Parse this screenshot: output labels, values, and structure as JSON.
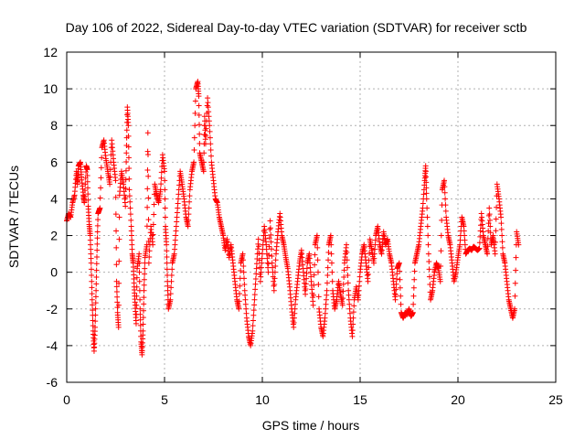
{
  "chart_data": {
    "type": "scatter",
    "title": "Day 106 of 2022, Sidereal Day-to-day VTEC variation (SDTVAR) for receiver sctb",
    "xlabel": "GPS time / hours",
    "ylabel": "SDTVAR / TECUs",
    "xlim": [
      0,
      25
    ],
    "ylim": [
      -6,
      12
    ],
    "xticks": [
      0,
      5,
      10,
      15,
      20,
      25
    ],
    "yticks": [
      -6,
      -4,
      -2,
      0,
      2,
      4,
      6,
      8,
      10,
      12
    ],
    "grid": true,
    "marker": "+",
    "color": "#ff0000",
    "series": [
      {
        "name": "SDTVAR",
        "points": [
          [
            0.0,
            2.8
          ],
          [
            0.1,
            3.2
          ],
          [
            0.2,
            3.0
          ],
          [
            0.3,
            3.8
          ],
          [
            0.4,
            4.2
          ],
          [
            0.5,
            5.5
          ],
          [
            0.55,
            4.8
          ],
          [
            0.6,
            5.8
          ],
          [
            0.7,
            6.0
          ],
          [
            0.75,
            5.2
          ],
          [
            0.85,
            4.2
          ],
          [
            0.9,
            3.8
          ],
          [
            1.0,
            5.8
          ],
          [
            1.05,
            5.6
          ],
          [
            1.1,
            3.6
          ],
          [
            1.15,
            2.6
          ],
          [
            1.2,
            2.0
          ],
          [
            1.25,
            0.5
          ],
          [
            1.3,
            -1.5
          ],
          [
            1.35,
            -3.2
          ],
          [
            1.4,
            -4.3
          ],
          [
            1.45,
            -3.0
          ],
          [
            1.5,
            -1.0
          ],
          [
            1.55,
            1.2
          ],
          [
            1.6,
            3.2
          ],
          [
            1.7,
            3.5
          ],
          [
            1.8,
            6.8
          ],
          [
            1.9,
            7.2
          ],
          [
            2.0,
            6.2
          ],
          [
            2.1,
            5.5
          ],
          [
            2.2,
            4.8
          ],
          [
            2.3,
            7.2
          ],
          [
            2.4,
            6.0
          ],
          [
            2.5,
            5.0
          ],
          [
            2.55,
            -0.5
          ],
          [
            2.6,
            -2.2
          ],
          [
            2.65,
            -3.0
          ],
          [
            2.7,
            4.2
          ],
          [
            2.8,
            5.5
          ],
          [
            2.9,
            4.8
          ],
          [
            3.0,
            3.6
          ],
          [
            3.05,
            6.5
          ],
          [
            3.1,
            9.0
          ],
          [
            3.15,
            8.0
          ],
          [
            3.2,
            4.5
          ],
          [
            3.3,
            2.5
          ],
          [
            3.35,
            1.0
          ],
          [
            3.4,
            0.5
          ],
          [
            3.45,
            -0.8
          ],
          [
            3.5,
            -1.8
          ],
          [
            3.55,
            -2.8
          ],
          [
            3.6,
            0.2
          ],
          [
            3.7,
            1.0
          ],
          [
            3.75,
            -2.0
          ],
          [
            3.8,
            -3.8
          ],
          [
            3.85,
            -4.5
          ],
          [
            3.9,
            -3.2
          ],
          [
            3.95,
            -1.0
          ],
          [
            4.0,
            0.8
          ],
          [
            4.1,
            1.5
          ],
          [
            4.15,
            7.6
          ],
          [
            4.2,
            0.5
          ],
          [
            4.3,
            2.5
          ],
          [
            4.4,
            1.5
          ],
          [
            4.5,
            4.8
          ],
          [
            4.6,
            4.2
          ],
          [
            4.7,
            3.8
          ],
          [
            4.8,
            4.5
          ],
          [
            4.9,
            6.4
          ],
          [
            5.0,
            5.5
          ],
          [
            5.05,
            2.5
          ],
          [
            5.1,
            1.5
          ],
          [
            5.15,
            -0.5
          ],
          [
            5.2,
            -2.0
          ],
          [
            5.3,
            -1.5
          ],
          [
            5.4,
            0.5
          ],
          [
            5.5,
            1.0
          ],
          [
            5.6,
            2.5
          ],
          [
            5.7,
            4.0
          ],
          [
            5.8,
            5.5
          ],
          [
            5.9,
            4.8
          ],
          [
            6.0,
            4.0
          ],
          [
            6.1,
            3.0
          ],
          [
            6.2,
            2.5
          ],
          [
            6.3,
            4.5
          ],
          [
            6.4,
            5.5
          ],
          [
            6.5,
            6.0
          ],
          [
            6.6,
            10.0
          ],
          [
            6.7,
            10.4
          ],
          [
            6.75,
            9.6
          ],
          [
            6.8,
            6.5
          ],
          [
            6.9,
            6.0
          ],
          [
            7.0,
            5.5
          ],
          [
            7.05,
            8.5
          ],
          [
            7.1,
            7.0
          ],
          [
            7.2,
            9.5
          ],
          [
            7.3,
            8.0
          ],
          [
            7.4,
            6.0
          ],
          [
            7.5,
            5.0
          ],
          [
            7.6,
            4.0
          ],
          [
            7.7,
            3.8
          ],
          [
            7.8,
            3.0
          ],
          [
            7.9,
            2.5
          ],
          [
            8.0,
            2.0
          ],
          [
            8.1,
            1.2
          ],
          [
            8.2,
            1.8
          ],
          [
            8.3,
            0.8
          ],
          [
            8.4,
            1.5
          ],
          [
            8.5,
            0.5
          ],
          [
            8.6,
            -0.5
          ],
          [
            8.7,
            -1.5
          ],
          [
            8.8,
            -2.0
          ],
          [
            8.9,
            0.5
          ],
          [
            9.0,
            1.0
          ],
          [
            9.1,
            -1.0
          ],
          [
            9.2,
            -2.5
          ],
          [
            9.3,
            -3.5
          ],
          [
            9.4,
            -4.0
          ],
          [
            9.5,
            -3.2
          ],
          [
            9.6,
            -1.5
          ],
          [
            9.7,
            0.2
          ],
          [
            9.8,
            1.8
          ],
          [
            9.9,
            -0.5
          ],
          [
            10.0,
            1.0
          ],
          [
            10.1,
            2.5
          ],
          [
            10.2,
            1.5
          ],
          [
            10.3,
            0.0
          ],
          [
            10.4,
            2.8
          ],
          [
            10.5,
            0.5
          ],
          [
            10.6,
            -1.0
          ],
          [
            10.7,
            1.0
          ],
          [
            10.8,
            2.2
          ],
          [
            10.9,
            3.2
          ],
          [
            11.0,
            2.0
          ],
          [
            11.1,
            1.5
          ],
          [
            11.2,
            0.8
          ],
          [
            11.3,
            0.2
          ],
          [
            11.4,
            -0.8
          ],
          [
            11.5,
            -2.0
          ],
          [
            11.6,
            -3.0
          ],
          [
            11.7,
            -1.5
          ],
          [
            11.8,
            -0.5
          ],
          [
            11.9,
            0.5
          ],
          [
            12.0,
            1.2
          ],
          [
            12.1,
            0.0
          ],
          [
            12.2,
            -1.2
          ],
          [
            12.3,
            0.5
          ],
          [
            12.4,
            1.0
          ],
          [
            12.5,
            -0.5
          ],
          [
            12.6,
            -1.8
          ],
          [
            12.7,
            1.5
          ],
          [
            12.8,
            2.0
          ],
          [
            12.9,
            -2.0
          ],
          [
            13.0,
            -3.0
          ],
          [
            13.1,
            -3.5
          ],
          [
            13.2,
            -2.5
          ],
          [
            13.3,
            -1.0
          ],
          [
            13.4,
            1.5
          ],
          [
            13.5,
            2.0
          ],
          [
            13.6,
            -1.0
          ],
          [
            13.7,
            -2.0
          ],
          [
            13.8,
            -1.5
          ],
          [
            13.9,
            -0.5
          ],
          [
            14.0,
            -1.2
          ],
          [
            14.1,
            -1.8
          ],
          [
            14.2,
            0.5
          ],
          [
            14.3,
            1.5
          ],
          [
            14.4,
            -1.0
          ],
          [
            14.5,
            -2.5
          ],
          [
            14.6,
            -3.5
          ],
          [
            14.7,
            -1.5
          ],
          [
            14.8,
            -0.8
          ],
          [
            14.9,
            -1.5
          ],
          [
            15.0,
            0.0
          ],
          [
            15.1,
            1.0
          ],
          [
            15.2,
            1.5
          ],
          [
            15.3,
            0.5
          ],
          [
            15.4,
            -0.5
          ],
          [
            15.5,
            1.8
          ],
          [
            15.6,
            1.2
          ],
          [
            15.7,
            0.5
          ],
          [
            15.8,
            2.0
          ],
          [
            15.9,
            2.5
          ],
          [
            16.0,
            1.5
          ],
          [
            16.1,
            1.0
          ],
          [
            16.2,
            2.2
          ],
          [
            16.3,
            1.5
          ],
          [
            16.4,
            1.8
          ],
          [
            16.5,
            1.0
          ],
          [
            16.6,
            0.5
          ],
          [
            16.7,
            -0.5
          ],
          [
            16.8,
            -1.5
          ],
          [
            16.9,
            0.2
          ],
          [
            17.0,
            0.5
          ],
          [
            17.1,
            -2.2
          ],
          [
            17.2,
            -2.5
          ],
          [
            17.3,
            -2.2
          ],
          [
            17.4,
            -2.3
          ],
          [
            17.5,
            -2.0
          ],
          [
            17.6,
            -2.4
          ],
          [
            17.7,
            -2.2
          ],
          [
            17.8,
            0.5
          ],
          [
            17.9,
            1.0
          ],
          [
            18.0,
            1.5
          ],
          [
            18.1,
            2.5
          ],
          [
            18.2,
            3.5
          ],
          [
            18.3,
            5.0
          ],
          [
            18.35,
            5.8
          ],
          [
            18.4,
            4.0
          ],
          [
            18.5,
            1.0
          ],
          [
            18.6,
            -1.5
          ],
          [
            18.7,
            -1.0
          ],
          [
            18.8,
            0.0
          ],
          [
            18.9,
            0.5
          ],
          [
            19.0,
            0.2
          ],
          [
            19.1,
            -0.5
          ],
          [
            19.2,
            4.5
          ],
          [
            19.3,
            5.0
          ],
          [
            19.4,
            3.0
          ],
          [
            19.5,
            2.0
          ],
          [
            19.6,
            1.5
          ],
          [
            19.7,
            0.5
          ],
          [
            19.8,
            -0.5
          ],
          [
            19.9,
            0.0
          ],
          [
            20.0,
            0.8
          ],
          [
            20.1,
            1.5
          ],
          [
            20.2,
            3.0
          ],
          [
            20.3,
            2.5
          ],
          [
            20.4,
            1.0
          ],
          [
            20.5,
            1.2
          ],
          [
            20.6,
            1.3
          ],
          [
            20.7,
            1.2
          ],
          [
            20.8,
            1.4
          ],
          [
            20.9,
            1.3
          ],
          [
            21.0,
            1.2
          ],
          [
            21.1,
            1.3
          ],
          [
            21.2,
            3.2
          ],
          [
            21.3,
            2.0
          ],
          [
            21.4,
            1.5
          ],
          [
            21.5,
            1.0
          ],
          [
            21.6,
            3.5
          ],
          [
            21.7,
            1.5
          ],
          [
            21.8,
            2.0
          ],
          [
            21.9,
            1.0
          ],
          [
            22.0,
            4.8
          ],
          [
            22.1,
            4.0
          ],
          [
            22.2,
            3.0
          ],
          [
            22.3,
            1.0
          ],
          [
            22.4,
            0.5
          ],
          [
            22.5,
            -0.5
          ],
          [
            22.6,
            -1.5
          ],
          [
            22.7,
            -2.0
          ],
          [
            22.8,
            -2.5
          ],
          [
            22.9,
            -2.0
          ],
          [
            23.0,
            2.2
          ],
          [
            23.1,
            1.5
          ]
        ]
      }
    ]
  }
}
